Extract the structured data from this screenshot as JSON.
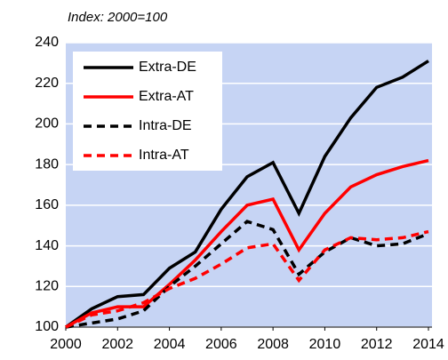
{
  "chart_data": {
    "type": "line",
    "subtitle": "Index: 2000=100",
    "x": [
      2000,
      2001,
      2002,
      2003,
      2004,
      2005,
      2006,
      2007,
      2008,
      2009,
      2010,
      2011,
      2012,
      2013,
      2014
    ],
    "series": [
      {
        "name": "Extra-DE",
        "color": "#000000",
        "style": "solid",
        "values": [
          100,
          109,
          115,
          116,
          129,
          137,
          158,
          174,
          181,
          156,
          184,
          203,
          218,
          223,
          231
        ]
      },
      {
        "name": "Extra-AT",
        "color": "#ff0000",
        "style": "solid",
        "values": [
          100,
          107,
          110,
          110,
          121,
          133,
          147,
          160,
          163,
          138,
          156,
          169,
          175,
          179,
          182
        ]
      },
      {
        "name": "Intra-DE",
        "color": "#000000",
        "style": "dashed",
        "values": [
          100,
          102,
          104,
          108,
          120,
          130,
          141,
          152,
          148,
          126,
          137,
          144,
          140,
          141,
          146
        ]
      },
      {
        "name": "Intra-AT",
        "color": "#ff0000",
        "style": "dashed",
        "values": [
          100,
          106,
          108,
          112,
          119,
          124,
          131,
          139,
          141,
          123,
          138,
          144,
          143,
          144,
          147
        ]
      }
    ],
    "xlim": [
      2000,
      2014
    ],
    "xticks": [
      2000,
      2002,
      2004,
      2006,
      2008,
      2010,
      2012,
      2014
    ],
    "ylim": [
      100,
      240
    ],
    "yticks": [
      100,
      120,
      140,
      160,
      180,
      200,
      220,
      240
    ],
    "grid": true,
    "legend": "upper left",
    "background": "#c6d4f4"
  }
}
